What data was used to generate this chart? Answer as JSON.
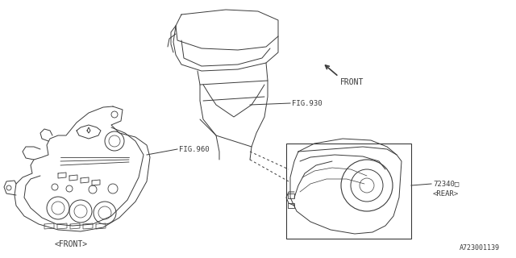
{
  "background_color": "#ffffff",
  "fig_width": 6.4,
  "fig_height": 3.2,
  "dpi": 100,
  "labels": {
    "fig930": "FIG.930",
    "fig960": "FIG.960",
    "part_num": "72340□",
    "rear": "<REAR>",
    "front_label": "<FRONT>",
    "front_arrow": "FRONT",
    "diagram_id": "A723001139"
  },
  "line_color": "#3a3a3a",
  "text_color": "#3a3a3a"
}
